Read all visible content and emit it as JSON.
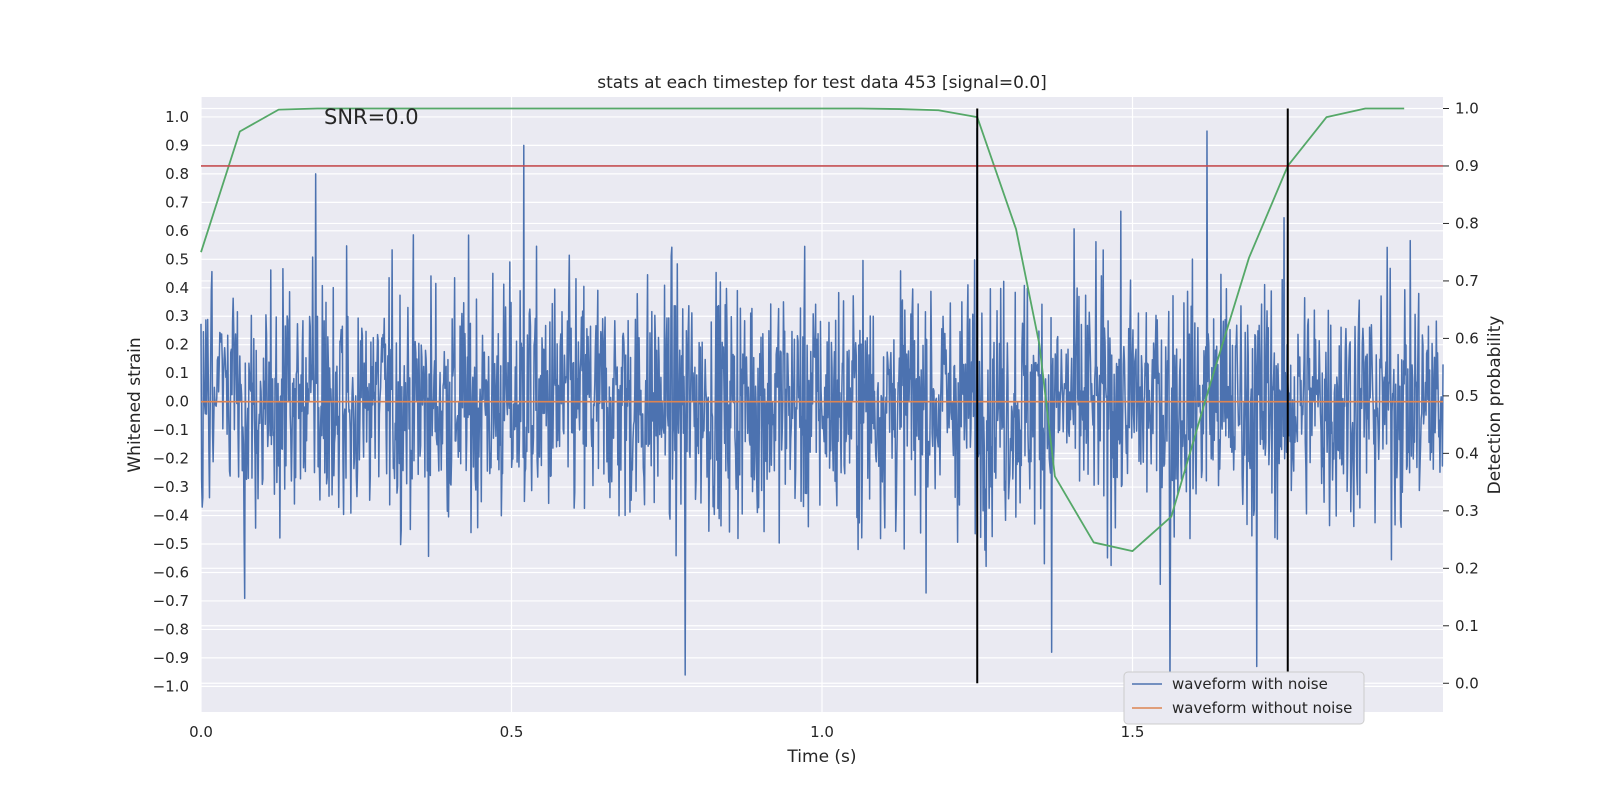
{
  "chart_data": {
    "type": "line",
    "title": "stats at each timestep for test data 453 [signal=0.0]",
    "xlabel": "Time (s)",
    "ylabel_left": "Whitened strain",
    "ylabel_right": "Detection probability",
    "annotation": "SNR=0.0",
    "xlim": [
      0.0,
      2.0
    ],
    "ylim_left": [
      -1.09,
      1.07
    ],
    "ylim_right": [
      -0.05,
      1.02
    ],
    "x_ticks": [
      0.0,
      0.5,
      1.0,
      1.5
    ],
    "x_tick_labels": [
      "0.0",
      "0.5",
      "1.0",
      "1.5"
    ],
    "left_ticks": [
      1.0,
      0.9,
      0.8,
      0.7,
      0.6,
      0.5,
      0.4,
      0.3,
      0.2,
      0.1,
      0.0,
      -0.1,
      -0.2,
      -0.3,
      -0.4,
      -0.5,
      -0.6,
      -0.7,
      -0.8,
      -0.9,
      -1.0
    ],
    "left_tick_labels": [
      "1.0",
      "0.9",
      "0.8",
      "0.7",
      "0.6",
      "0.5",
      "0.4",
      "0.3",
      "0.2",
      "0.1",
      "0.0",
      "−0.1",
      "−0.2",
      "−0.3",
      "−0.4",
      "−0.5",
      "−0.6",
      "−0.7",
      "−0.8",
      "−0.9",
      "−1.0"
    ],
    "right_ticks": [
      0.0,
      0.1,
      0.2,
      0.3,
      0.4,
      0.5,
      0.6,
      0.7,
      0.8,
      0.9,
      1.0
    ],
    "right_tick_labels": [
      "0.0",
      "0.1",
      "0.2",
      "0.3",
      "0.4",
      "0.5",
      "0.6",
      "0.7",
      "0.8",
      "0.9",
      "1.0"
    ],
    "series": [
      {
        "name": "waveform with noise",
        "color": "#4c72b0",
        "axis": "left",
        "kind": "noise",
        "t_start": 0.0,
        "t_end": 2.0,
        "n_samples": 2048,
        "amplitude_range": [
          -0.96,
          0.96
        ],
        "peaks": [
          [
            0.185,
            0.8
          ],
          [
            0.52,
            0.9
          ],
          [
            1.25,
            0.96
          ],
          [
            1.62,
            0.95
          ],
          [
            1.37,
            -0.88
          ],
          [
            0.78,
            -0.96
          ],
          [
            1.56,
            -0.99
          ],
          [
            1.7,
            -0.93
          ]
        ]
      },
      {
        "name": "waveform without noise",
        "color": "#dd8452",
        "axis": "left",
        "x": [
          0.0,
          2.0
        ],
        "y": [
          0.0,
          0.0
        ]
      },
      {
        "name": "Detection probability",
        "color": "#55a868",
        "axis": "right",
        "x": [
          0.0,
          0.0625,
          0.125,
          0.1875,
          0.25,
          0.3125,
          0.375,
          0.4375,
          0.5,
          0.5625,
          0.625,
          0.6875,
          0.75,
          0.8125,
          0.875,
          0.9375,
          1.0,
          1.0625,
          1.125,
          1.1875,
          1.25,
          1.3125,
          1.35,
          1.375,
          1.4375,
          1.5,
          1.5625,
          1.625,
          1.6875,
          1.75,
          1.8125,
          1.875,
          1.9375
        ],
        "y": [
          0.75,
          0.96,
          0.998,
          1.0,
          1.0,
          1.0,
          1.0,
          1.0,
          1.0,
          1.0,
          1.0,
          1.0,
          1.0,
          1.0,
          1.0,
          1.0,
          1.0,
          1.0,
          0.999,
          0.997,
          0.985,
          0.79,
          0.59,
          0.36,
          0.245,
          0.23,
          0.29,
          0.52,
          0.74,
          0.9,
          0.985,
          1.0,
          1.0
        ]
      }
    ],
    "threshold": {
      "value": 0.9,
      "axis": "right",
      "color": "#c44e52"
    },
    "vertical_markers": {
      "x": [
        1.25,
        1.75
      ],
      "y_range": [
        0.0,
        1.0
      ],
      "axis": "right",
      "color": "#000000"
    },
    "legend": {
      "position": "lower-right",
      "entries": [
        {
          "label": "waveform with noise",
          "color": "#4c72b0"
        },
        {
          "label": "waveform without noise",
          "color": "#dd8452"
        }
      ]
    },
    "grid": true,
    "background": "#eaeaf2"
  }
}
